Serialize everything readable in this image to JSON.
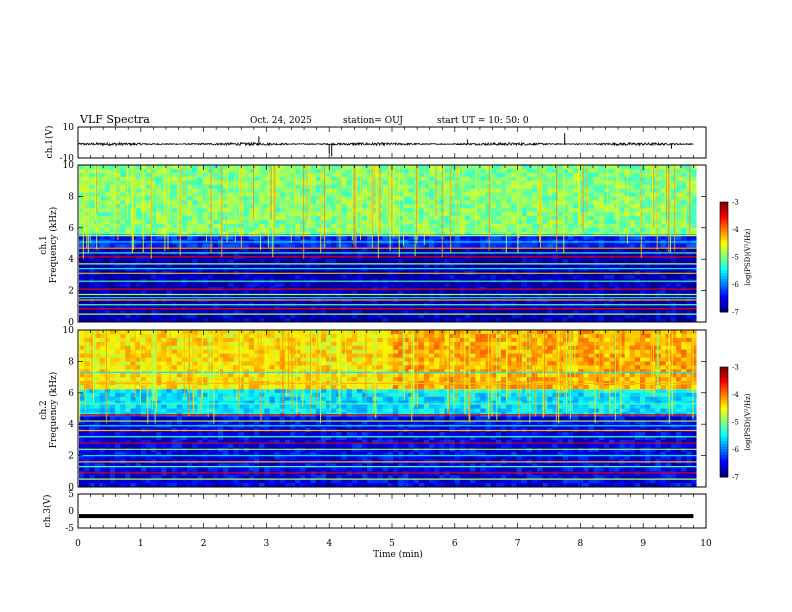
{
  "header": {
    "title": "VLF Spectra",
    "date": "Oct. 24, 2025",
    "station": "station= OUJ",
    "start": "start  UT =   10: 50: 0"
  },
  "chart_data": [
    {
      "type": "line",
      "name": "ch1-waveform",
      "ylabel": "ch.1(V)",
      "ylim": [
        -10,
        10
      ],
      "yticks": [
        "10",
        "-10"
      ],
      "xlim": [
        0,
        10
      ],
      "baseline": -1,
      "noise_amplitude": 0.6,
      "spikes": [
        {
          "x": 2.88,
          "y": 4
        },
        {
          "x": 4.0,
          "y": -7
        },
        {
          "x": 4.04,
          "y": -9
        },
        {
          "x": 6.2,
          "y": 2
        },
        {
          "x": 7.75,
          "y": 6
        },
        {
          "x": 9.45,
          "y": -4
        }
      ]
    },
    {
      "type": "heatmap",
      "name": "ch1-spectrogram",
      "ylabel": "ch.1\nFrequency (kHz)",
      "ylabel_lines": [
        "ch.1",
        "Frequency (kHz)"
      ],
      "ylim": [
        0,
        10
      ],
      "yticks": [
        "0",
        "2",
        "4",
        "6",
        "8",
        "10"
      ],
      "xlim": [
        0,
        9.85
      ],
      "colorbar": {
        "label": "log(PSD)(V²/Hz)",
        "range": [
          -7,
          -3
        ],
        "ticks": [
          "-3",
          "-4",
          "-5",
          "-6",
          "-7"
        ]
      },
      "regions": [
        {
          "fmin": 0,
          "fmax": 4.8,
          "level": -6.8
        },
        {
          "fmin": 4.8,
          "fmax": 5.6,
          "level": -6.4
        },
        {
          "fmin": 5.6,
          "fmax": 10,
          "level": -5.0
        }
      ],
      "lines_khz": [
        0.5,
        0.85,
        1.1,
        1.4,
        1.55,
        1.75,
        2.1,
        2.6,
        3.1,
        3.4,
        3.7,
        4.15,
        4.4,
        4.7,
        5.1,
        5.5
      ]
    },
    {
      "type": "heatmap",
      "name": "ch2-spectrogram",
      "ylabel": "ch.2\nFrequency (kHz)",
      "ylabel_lines": [
        "ch.2",
        "Frequency (kHz)"
      ],
      "ylim": [
        0,
        10
      ],
      "yticks": [
        "0",
        "2",
        "4",
        "6",
        "8",
        "10"
      ],
      "xlim": [
        0,
        9.85
      ],
      "colorbar": {
        "label": "log(PSD)(V²/Hz)",
        "range": [
          -7,
          -3
        ],
        "ticks": [
          "-3",
          "-4",
          "-5",
          "-6",
          "-7"
        ]
      },
      "regions": [
        {
          "fmin": 0,
          "fmax": 4.6,
          "level": -6.6
        },
        {
          "fmin": 4.6,
          "fmax": 6.2,
          "level": -5.6
        },
        {
          "fmin": 6.2,
          "fmax": 10,
          "level": -4.4
        }
      ],
      "lines_khz": [
        0.5,
        0.9,
        1.3,
        1.6,
        2.0,
        2.4,
        2.8,
        3.2,
        3.6,
        3.9,
        4.2,
        4.6,
        5.3,
        6.6,
        7.3
      ]
    },
    {
      "type": "line",
      "name": "ch3-waveform",
      "ylabel": "ch.3(V)",
      "ylim": [
        -5,
        5
      ],
      "yticks": [
        "5",
        "0",
        "-5"
      ],
      "xlim": [
        0,
        10
      ],
      "baseline": -1.5,
      "xlabel": "Time  (min)",
      "xticks": [
        "0",
        "1",
        "2",
        "3",
        "4",
        "5",
        "6",
        "7",
        "8",
        "9",
        "10"
      ]
    }
  ]
}
